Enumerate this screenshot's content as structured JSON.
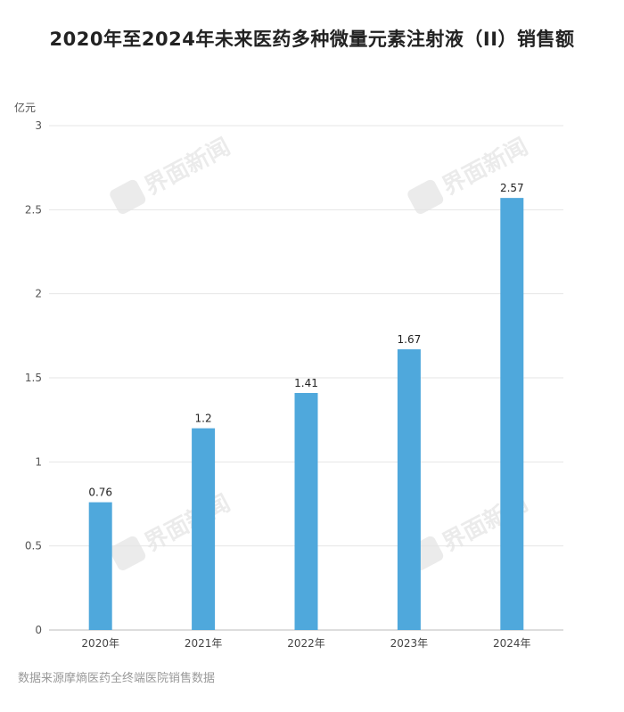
{
  "title": "2020年至2024年未来医药多种微量元素注射液（II）销售额",
  "unit": "亿元",
  "source": "数据来源摩熵医药全终端医院销售数据",
  "watermark": "界面新闻",
  "colors": {
    "bar": "#4FA8DC",
    "grid": "#e6e6e6",
    "axis": "#bbbbbb"
  },
  "chart_data": {
    "type": "bar",
    "categories": [
      "2020年",
      "2021年",
      "2022年",
      "2023年",
      "2024年"
    ],
    "values": [
      0.76,
      1.2,
      1.41,
      1.67,
      2.57
    ],
    "data_labels": [
      "0.76",
      "1.2",
      "1.41",
      "1.67",
      "2.57"
    ],
    "ylim": [
      0,
      3
    ],
    "yticks": [
      0,
      0.5,
      1,
      1.5,
      2,
      2.5,
      3
    ],
    "ytick_labels": [
      "0",
      "0.5",
      "1",
      "1.5",
      "2",
      "2.5",
      "3"
    ],
    "ylabel": "亿元",
    "grid": true,
    "legend": "none"
  }
}
